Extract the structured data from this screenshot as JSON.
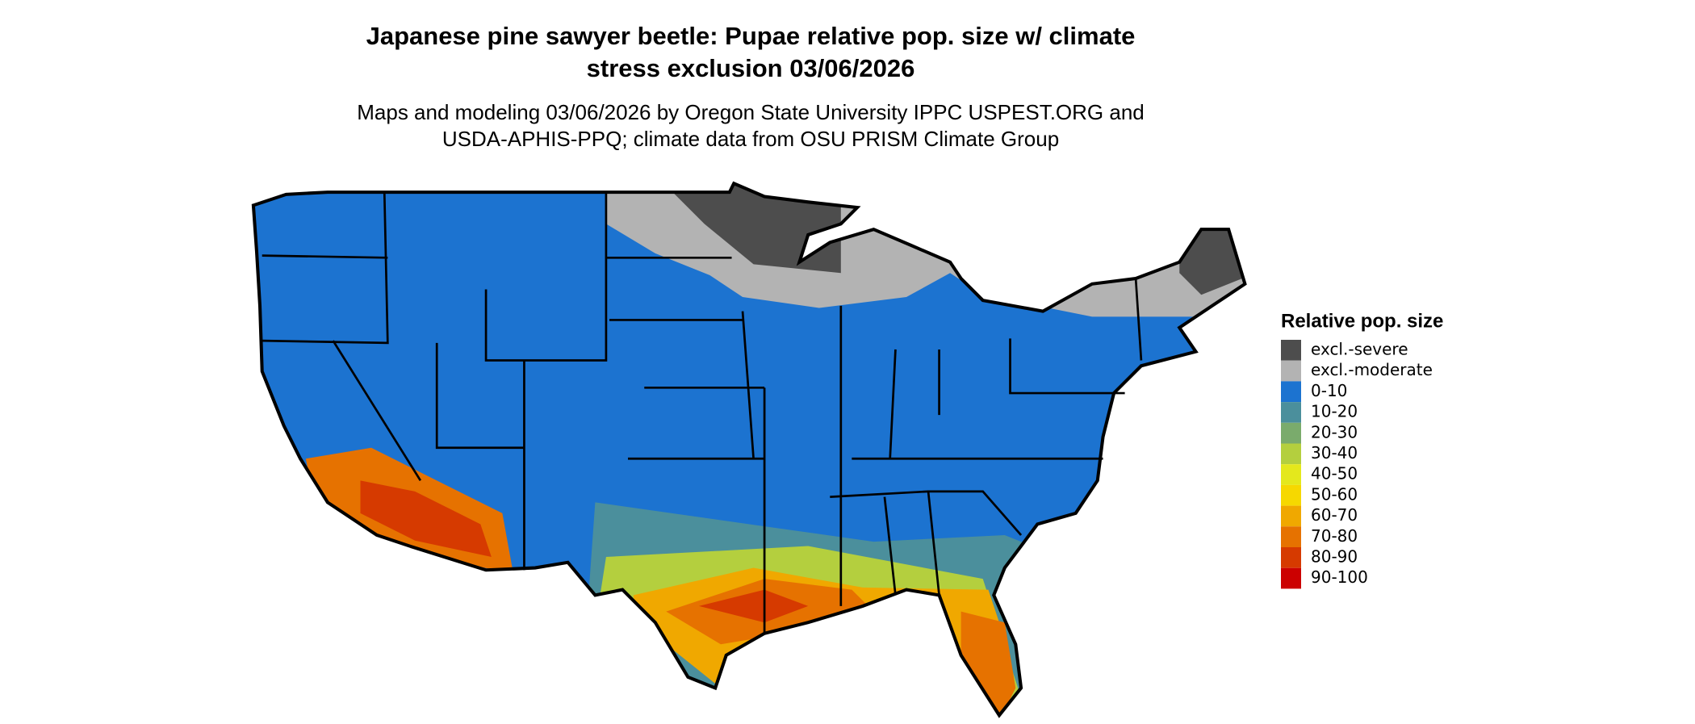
{
  "header": {
    "title": [
      "Japanese pine sawyer beetle: Pupae relative pop. size w/ climate",
      "stress exclusion 03/06/2026"
    ],
    "subtitle": [
      "Maps and modeling 03/06/2026 by Oregon State University IPPC USPEST.ORG and",
      "USDA-APHIS-PPQ; climate data from OSU PRISM Climate Group"
    ]
  },
  "legend": {
    "title": "Relative pop. size",
    "items": [
      {
        "label": "excl.-severe",
        "color": "#4d4d4d"
      },
      {
        "label": "excl.-moderate",
        "color": "#b3b3b3"
      },
      {
        "label": "0-10",
        "color": "#1c73d0"
      },
      {
        "label": "10-20",
        "color": "#4b8f9c"
      },
      {
        "label": "20-30",
        "color": "#7aab6c"
      },
      {
        "label": "30-40",
        "color": "#b4cf3e"
      },
      {
        "label": "40-50",
        "color": "#e4e81c"
      },
      {
        "label": "50-60",
        "color": "#f6d800"
      },
      {
        "label": "60-70",
        "color": "#f0a800"
      },
      {
        "label": "70-80",
        "color": "#e67200"
      },
      {
        "label": "80-90",
        "color": "#d63a00"
      },
      {
        "label": "90-100",
        "color": "#cc0000"
      }
    ]
  }
}
